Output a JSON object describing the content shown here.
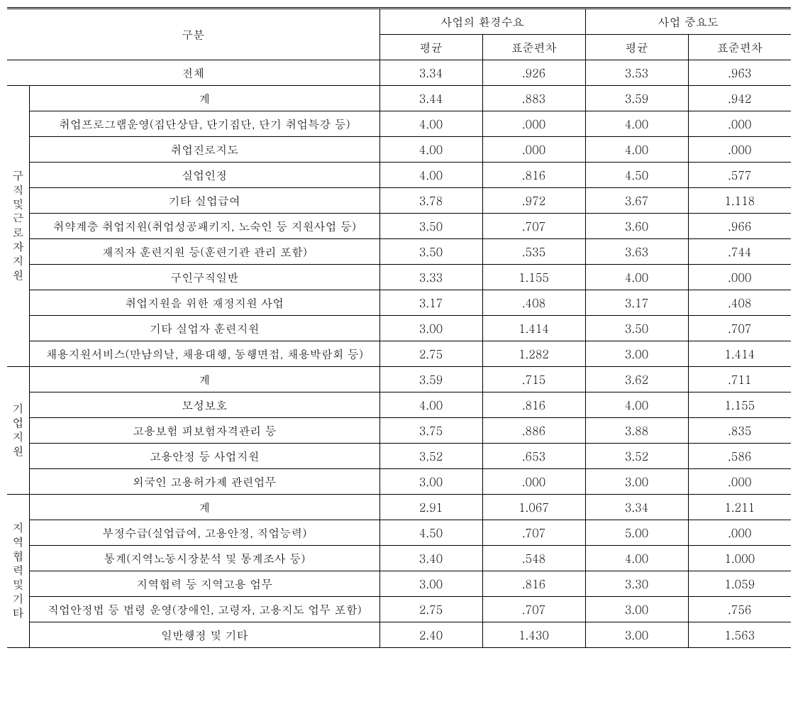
{
  "header": {
    "category": "구분",
    "group1": "사업의 환경수요",
    "group2": "사업 중요도",
    "mean": "평균",
    "stddev": "표준편차"
  },
  "total": {
    "label": "전체",
    "mean1": "3.34",
    "std1": ".926",
    "mean2": "3.53",
    "std2": ".963"
  },
  "section1": {
    "label": "구직및근로자지원",
    "rows": [
      {
        "label": "계",
        "mean1": "3.44",
        "std1": ".883",
        "mean2": "3.59",
        "std2": ".942"
      },
      {
        "label": "취업프로그램운영(집단상담, 단기집단, 단기 취업특강 등)",
        "mean1": "4.00",
        "std1": ".000",
        "mean2": "4.00",
        "std2": ".000"
      },
      {
        "label": "취업진로지도",
        "mean1": "4.00",
        "std1": ".000",
        "mean2": "4.00",
        "std2": ".000"
      },
      {
        "label": "실업인정",
        "mean1": "4.00",
        "std1": ".816",
        "mean2": "4.50",
        "std2": ".577"
      },
      {
        "label": "기타 실업급여",
        "mean1": "3.78",
        "std1": ".972",
        "mean2": "3.67",
        "std2": "1.118"
      },
      {
        "label": "취약계층 취업지원(취업성공패키지, 노숙인 등 지원사업 등)",
        "mean1": "3.50",
        "std1": ".707",
        "mean2": "3.60",
        "std2": ".966"
      },
      {
        "label": "재직자 훈련지원 등(훈련기관 관리 포함)",
        "mean1": "3.50",
        "std1": ".535",
        "mean2": "3.63",
        "std2": ".744"
      },
      {
        "label": "구인구직일반",
        "mean1": "3.33",
        "std1": "1.155",
        "mean2": "4.00",
        "std2": ".000"
      },
      {
        "label": "취업지원을 위한  재정지원 사업",
        "mean1": "3.17",
        "std1": ".408",
        "mean2": "3.17",
        "std2": ".408"
      },
      {
        "label": "기타 실업자  훈련지원",
        "mean1": "3.00",
        "std1": "1.414",
        "mean2": "3.50",
        "std2": ".707"
      },
      {
        "label": "채용지원서비스(만남의날, 채용대행, 동행면접, 채용박람회 등)",
        "mean1": "2.75",
        "std1": "1.282",
        "mean2": "3.00",
        "std2": "1.414"
      }
    ]
  },
  "section2": {
    "label": "기업지원",
    "rows": [
      {
        "label": "계",
        "mean1": "3.59",
        "std1": ".715",
        "mean2": "3.62",
        "std2": ".711"
      },
      {
        "label": "모성보호",
        "mean1": "4.00",
        "std1": ".816",
        "mean2": "4.00",
        "std2": "1.155"
      },
      {
        "label": "고용보험 피보험자격관리 등",
        "mean1": "3.75",
        "std1": ".886",
        "mean2": "3.88",
        "std2": ".835"
      },
      {
        "label": "고용안정 등 사업지원",
        "mean1": "3.52",
        "std1": ".653",
        "mean2": "3.52",
        "std2": ".586"
      },
      {
        "label": "외국인 고용허가제 관련업무",
        "mean1": "3.00",
        "std1": ".000",
        "mean2": "3.00",
        "std2": ".000"
      }
    ]
  },
  "section3": {
    "label": "지역협력및기타",
    "rows": [
      {
        "label": "계",
        "mean1": "2.91",
        "std1": "1.067",
        "mean2": "3.34",
        "std2": "1.211"
      },
      {
        "label": "부정수급(실업급여, 고용안정, 직업능력)",
        "mean1": "4.50",
        "std1": ".707",
        "mean2": "5.00",
        "std2": ".000"
      },
      {
        "label": "통계(지역노동시장분석  및 통계조사 등)",
        "mean1": "3.40",
        "std1": ".548",
        "mean2": "4.00",
        "std2": "1.000"
      },
      {
        "label": "지역협력 등 지역고용 업무",
        "mean1": "3.00",
        "std1": ".816",
        "mean2": "3.30",
        "std2": "1.059"
      },
      {
        "label": "직업안정법 등 법령 운영(장애인, 고령자, 고용지도 업무 포함)",
        "mean1": "2.75",
        "std1": ".707",
        "mean2": "3.00",
        "std2": ".756"
      },
      {
        "label": "일반행정 및 기타",
        "mean1": "2.40",
        "std1": "1.430",
        "mean2": "3.00",
        "std2": "1.563"
      }
    ]
  }
}
